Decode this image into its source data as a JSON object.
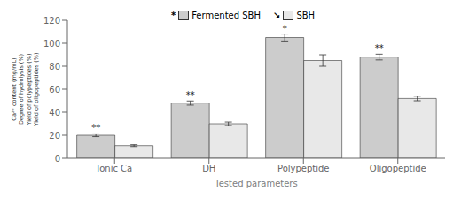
{
  "chart_data": {
    "type": "bar",
    "categories": [
      "Ionic Ca",
      "DH",
      "Polypeptide",
      "Oligopeptide"
    ],
    "series": [
      {
        "name": "Fermented SBH",
        "color": "#cccccc",
        "values": [
          20,
          48,
          105,
          88
        ],
        "errors": [
          1.2,
          1.8,
          3.0,
          2.5
        ]
      },
      {
        "name": "SBH",
        "color": "#e8e8e8",
        "values": [
          11,
          30,
          85,
          52
        ],
        "errors": [
          0.8,
          1.5,
          5.0,
          2.0
        ]
      }
    ],
    "annotations": [
      {
        "text": "**",
        "x": "Ionic Ca",
        "series": "Fermented SBH"
      },
      {
        "text": "**",
        "x": "DH",
        "series": "Fermented SBH"
      },
      {
        "text": "*",
        "x": "Polypeptide",
        "series": "Fermented SBH"
      },
      {
        "text": "**",
        "x": "Oligopeptide",
        "series": "Fermented SBH"
      },
      {
        "text": "*",
        "series": "Fermented SBH"
      },
      {
        "text": "↘",
        "series": "SBH"
      }
    ],
    "xlabel": "Tested parameters",
    "ylabel": [
      "Ca²⁺ content (mg/mL)",
      "Degree of hydrolysis (%)",
      "Yield of polypeptides (%)",
      "Yield of oligopeptides (%)"
    ],
    "ylim": [
      0,
      120
    ],
    "yticks": [
      0,
      20,
      40,
      60,
      80,
      100,
      120
    ],
    "grid": false,
    "legend": "top"
  }
}
